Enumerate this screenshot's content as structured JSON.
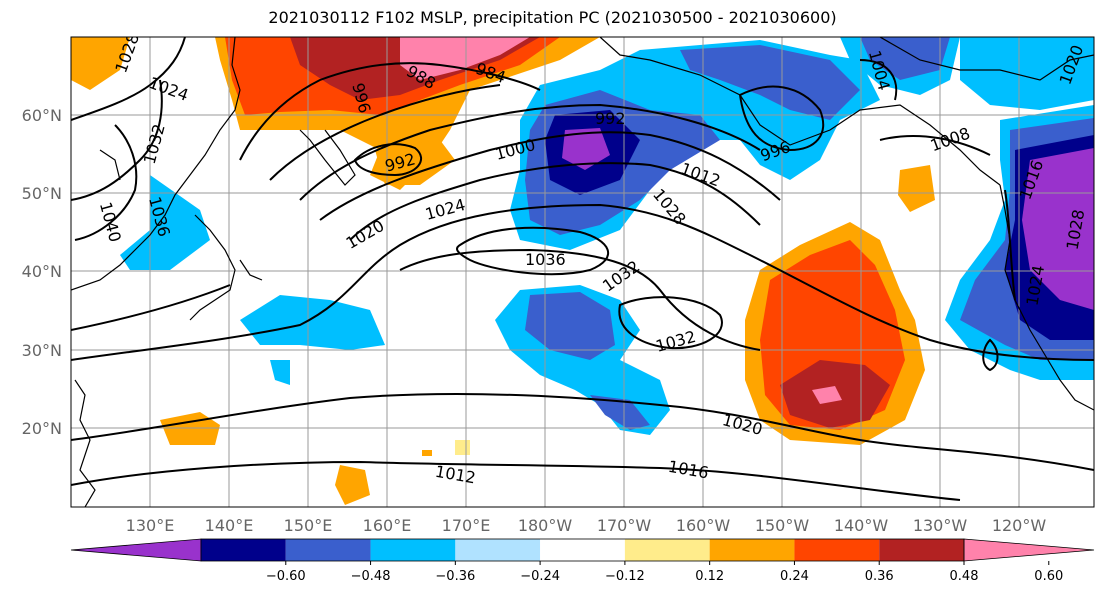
{
  "title": "2021030112 F102 MSLP, precipitation PC (2021030500 - 2021030600)",
  "lat_labels": [
    "60°N",
    "50°N",
    "40°N",
    "30°N",
    "20°N"
  ],
  "lon_labels": [
    "130°E",
    "140°E",
    "150°E",
    "160°E",
    "170°E",
    "180°W",
    "170°W",
    "160°W",
    "150°W",
    "140°W",
    "130°W",
    "120°W"
  ],
  "colorbar": {
    "colors": [
      "#9932CC",
      "#00008B",
      "#3A5FCD",
      "#00BFFF",
      "#B0E2FF",
      "#FFFFFF",
      "#FFEC8B",
      "#FFA500",
      "#FF4500",
      "#B22222",
      "#FF82AB"
    ],
    "ticks": [
      "−0.60",
      "−0.48",
      "−0.36",
      "−0.24",
      "−0.12",
      "0.12",
      "0.24",
      "0.36",
      "0.48",
      "0.60"
    ]
  },
  "contour_labels": [
    "1028",
    "1024",
    "1032",
    "1040",
    "1036",
    "996",
    "988",
    "984",
    "992",
    "992",
    "1000",
    "1004",
    "992",
    "996",
    "1008",
    "1012",
    "1028",
    "1024",
    "1020",
    "1036",
    "1032",
    "1032",
    "1012",
    "1016",
    "1020",
    "1016",
    "1020",
    "1024",
    "1028"
  ]
}
